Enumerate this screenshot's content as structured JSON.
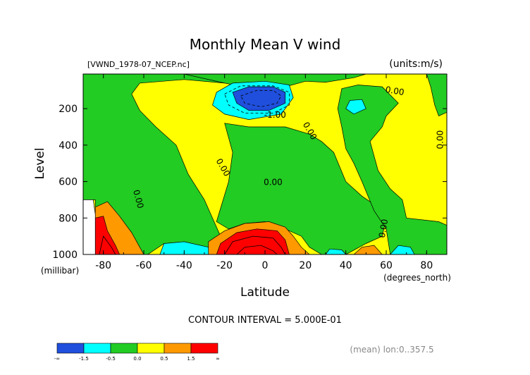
{
  "chart_data": {
    "type": "heatmap",
    "title": "Monthly Mean V wind",
    "file_label": "[VWND_1978-07_NCEP.nc]",
    "units_label": "(units:m/s)",
    "xlabel": "Latitude",
    "x_units": "(degrees_north)",
    "ylabel": "Level",
    "y_units": "(millibar)",
    "xlim": [
      -90,
      90
    ],
    "ylim": [
      1000,
      10
    ],
    "x_ticks": [
      -80,
      -60,
      -40,
      -20,
      0,
      20,
      40,
      60,
      80
    ],
    "y_ticks": [
      200,
      400,
      600,
      800,
      1000
    ],
    "contour_interval_text": "CONTOUR INTERVAL = 5.000E-01",
    "mean_note": "(mean) lon:0..357.5",
    "contour_labels": [
      {
        "text": "0.00",
        "lat": 64,
        "lev": 118,
        "rot": 10
      },
      {
        "text": "-1.00",
        "lat": 5,
        "lev": 250,
        "rot": 0
      },
      {
        "text": "0.00",
        "lat": 21,
        "lev": 330,
        "rot": 60
      },
      {
        "text": "0.00",
        "lat": 88,
        "lev": 370,
        "rot": -90
      },
      {
        "text": "0.00",
        "lat": -22,
        "lev": 530,
        "rot": 60
      },
      {
        "text": "0.00",
        "lat": 4,
        "lev": 620,
        "rot": 0
      },
      {
        "text": "0.00",
        "lat": -64,
        "lev": 700,
        "rot": 75
      },
      {
        "text": "0.00",
        "lat": 60,
        "lev": 860,
        "rot": -80
      }
    ],
    "legend": {
      "colors": [
        "#1f4fdc",
        "#00ffff",
        "#22cc22",
        "#ffff00",
        "#ff9900",
        "#ff0000"
      ],
      "tick_labels": [
        "-∞",
        "-1.5",
        "-0.5",
        "0.0",
        "0.5",
        "1.5",
        "∞"
      ]
    }
  }
}
